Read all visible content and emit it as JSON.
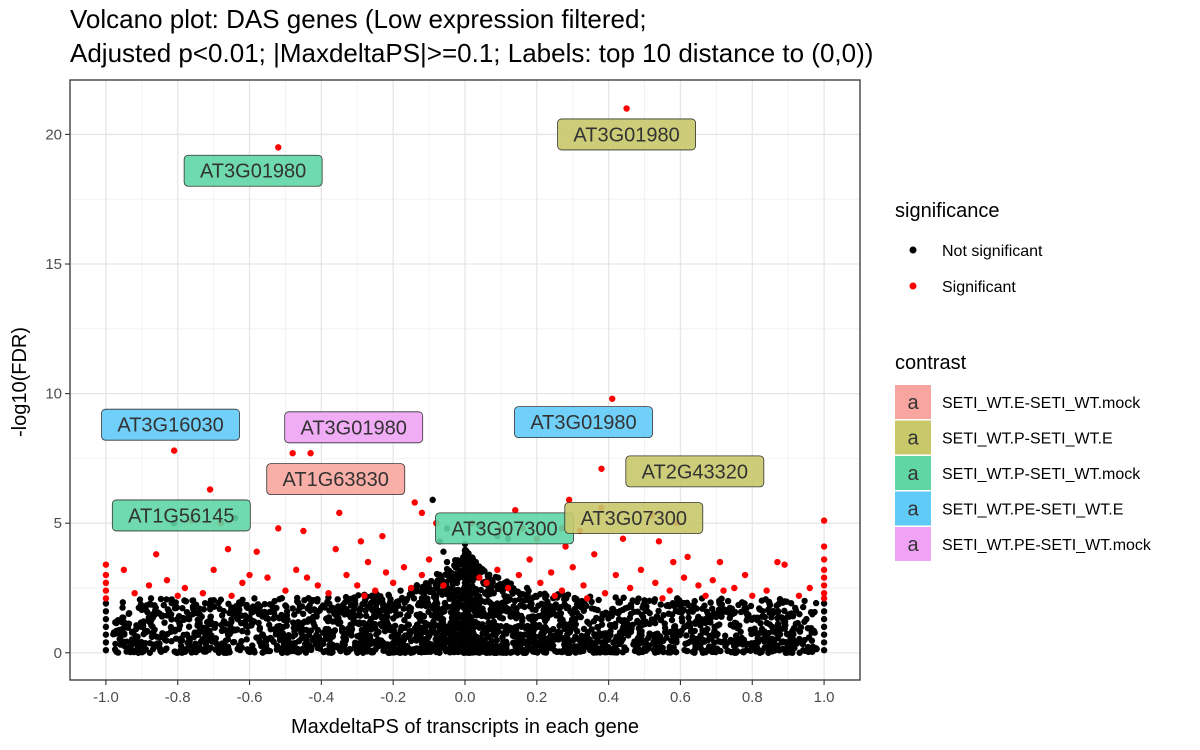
{
  "chart_data": {
    "type": "scatter",
    "title_lines": [
      "Volcano plot: DAS genes (Low expression filtered;",
      "Adjusted p<0.01; |MaxdeltaPS|>=0.1; Labels: top 10 distance to (0,0))"
    ],
    "xlabel": "MaxdeltaPS of transcripts in each gene",
    "ylabel": "-log10(FDR)",
    "xlim": [
      -1.1,
      1.1
    ],
    "ylim": [
      -1.05,
      22.1
    ],
    "xticks": [
      -1.0,
      -0.8,
      -0.6,
      -0.4,
      -0.2,
      0.0,
      0.2,
      0.4,
      0.6,
      0.8,
      1.0
    ],
    "xtick_labels": [
      "-1.0",
      "-0.8",
      "-0.6",
      "-0.4",
      "-0.2",
      "0.0",
      "0.2",
      "0.4",
      "0.6",
      "0.8",
      "1.0"
    ],
    "yticks": [
      0,
      5,
      10,
      15,
      20
    ],
    "ytick_labels": [
      "0",
      "5",
      "10",
      "15",
      "20"
    ],
    "grid": true,
    "legend_position": "right",
    "significance_legend": {
      "title": "significance",
      "entries": [
        {
          "label": "Not significant",
          "color": "#000000"
        },
        {
          "label": "Significant",
          "color": "#ff0000"
        }
      ]
    },
    "contrast_legend": {
      "title": "contrast",
      "key_glyph": "a",
      "entries": [
        {
          "label": "SETI_WT.E-SETI_WT.mock",
          "color": "#f8a59f"
        },
        {
          "label": "SETI_WT.P-SETI_WT.E",
          "color": "#c8c86a"
        },
        {
          "label": "SETI_WT.P-SETI_WT.mock",
          "color": "#5fd6a4"
        },
        {
          "label": "SETI_WT.PE-SETI_WT.E",
          "color": "#61cbf8"
        },
        {
          "label": "SETI_WT.PE-SETI_WT.mock",
          "color": "#f0a3f5"
        }
      ]
    },
    "significant_points": [
      [
        0.45,
        21.0
      ],
      [
        -0.52,
        19.5
      ],
      [
        0.41,
        9.8
      ],
      [
        -0.81,
        7.8
      ],
      [
        -0.43,
        7.7
      ],
      [
        -0.48,
        7.7
      ],
      [
        0.38,
        7.1
      ],
      [
        -0.71,
        6.3
      ],
      [
        -0.35,
        5.4
      ],
      [
        -0.14,
        5.8
      ],
      [
        -0.12,
        5.4
      ],
      [
        0.14,
        5.5
      ],
      [
        0.29,
        5.9
      ],
      [
        0.38,
        5.6
      ],
      [
        0.52,
        5.3
      ],
      [
        0.54,
        4.3
      ],
      [
        0.59,
        5.0
      ],
      [
        -0.76,
        5.1
      ],
      [
        -0.68,
        5.0
      ],
      [
        -0.52,
        4.8
      ],
      [
        -0.45,
        4.7
      ],
      [
        -0.08,
        5.0
      ],
      [
        0.02,
        5.0
      ],
      [
        0.1,
        4.8
      ],
      [
        0.16,
        4.8
      ],
      [
        0.27,
        4.8
      ],
      [
        0.32,
        4.7
      ],
      [
        -0.86,
        3.8
      ],
      [
        -0.66,
        4.0
      ],
      [
        -0.58,
        3.9
      ],
      [
        -0.36,
        4.0
      ],
      [
        -0.29,
        4.3
      ],
      [
        -0.23,
        4.5
      ],
      [
        0.2,
        4.4
      ],
      [
        0.28,
        4.1
      ],
      [
        0.44,
        4.4
      ],
      [
        0.62,
        3.7
      ],
      [
        0.71,
        3.5
      ],
      [
        -1.0,
        3.4
      ],
      [
        -1.0,
        3.0
      ],
      [
        -1.0,
        2.7
      ],
      [
        -1.0,
        2.4
      ],
      [
        -1.0,
        2.1
      ],
      [
        1.0,
        5.1
      ],
      [
        1.0,
        4.1
      ],
      [
        1.0,
        3.6
      ],
      [
        1.0,
        3.2
      ],
      [
        1.0,
        2.9
      ],
      [
        1.0,
        2.6
      ],
      [
        1.0,
        2.3
      ],
      [
        1.0,
        2.1
      ],
      [
        0.89,
        3.4
      ],
      [
        0.87,
        3.5
      ],
      [
        0.78,
        3.0
      ],
      [
        0.69,
        2.8
      ],
      [
        0.75,
        2.5
      ],
      [
        0.84,
        2.4
      ],
      [
        0.93,
        2.2
      ],
      [
        0.96,
        2.5
      ],
      [
        -0.95,
        3.2
      ],
      [
        -0.92,
        2.3
      ],
      [
        -0.88,
        2.6
      ],
      [
        -0.83,
        2.8
      ],
      [
        -0.78,
        2.5
      ],
      [
        -0.73,
        2.3
      ],
      [
        -0.62,
        2.7
      ],
      [
        -0.6,
        3.0
      ],
      [
        -0.55,
        2.9
      ],
      [
        -0.5,
        2.4
      ],
      [
        -0.47,
        3.2
      ],
      [
        -0.41,
        2.6
      ],
      [
        -0.38,
        2.3
      ],
      [
        -0.33,
        3.0
      ],
      [
        -0.3,
        2.6
      ],
      [
        -0.27,
        3.5
      ],
      [
        -0.25,
        2.4
      ],
      [
        -0.22,
        3.1
      ],
      [
        -0.2,
        2.7
      ],
      [
        -0.17,
        3.3
      ],
      [
        -0.15,
        2.5
      ],
      [
        -0.12,
        3.0
      ],
      [
        -0.1,
        3.6
      ],
      [
        -0.06,
        2.6
      ],
      [
        0.06,
        2.7
      ],
      [
        0.09,
        3.2
      ],
      [
        0.12,
        2.5
      ],
      [
        0.15,
        3.0
      ],
      [
        0.18,
        3.6
      ],
      [
        0.21,
        2.7
      ],
      [
        0.24,
        3.1
      ],
      [
        0.27,
        2.4
      ],
      [
        0.3,
        3.3
      ],
      [
        0.33,
        2.6
      ],
      [
        0.36,
        3.8
      ],
      [
        0.39,
        2.3
      ],
      [
        0.42,
        3.0
      ],
      [
        0.46,
        2.5
      ],
      [
        0.49,
        3.2
      ],
      [
        0.53,
        2.7
      ],
      [
        0.57,
        2.4
      ],
      [
        0.61,
        2.9
      ],
      [
        0.65,
        2.6
      ],
      [
        0.67,
        2.2
      ],
      [
        0.72,
        2.4
      ],
      [
        0.8,
        2.2
      ],
      [
        -0.7,
        3.2
      ],
      [
        -0.44,
        2.9
      ],
      [
        -0.28,
        2.2
      ],
      [
        0.04,
        2.9
      ],
      [
        0.25,
        2.2
      ],
      [
        0.55,
        2.1
      ],
      [
        0.58,
        3.5
      ],
      [
        -0.8,
        2.2
      ],
      [
        -0.65,
        2.2
      ],
      [
        0.34,
        2.1
      ]
    ],
    "nonsignificant_points": [
      [
        -0.09,
        5.9
      ],
      [
        -0.07,
        4.3
      ],
      [
        -0.06,
        3.9
      ],
      [
        -0.05,
        3.5
      ],
      [
        0.03,
        3.5
      ],
      [
        0.05,
        3.2
      ],
      [
        -0.04,
        3.0
      ],
      [
        0.02,
        2.9
      ],
      [
        -0.08,
        2.7
      ],
      [
        0.07,
        2.6
      ],
      [
        -0.05,
        4.8
      ],
      [
        0.0,
        4.2
      ],
      [
        0.04,
        4.9
      ],
      [
        -0.1,
        2.5
      ],
      [
        0.08,
        2.3
      ],
      [
        -0.03,
        2.2
      ],
      [
        0.11,
        2.2
      ],
      [
        -0.12,
        2.1
      ],
      [
        0.13,
        2.4
      ],
      [
        -0.15,
        2.3
      ],
      [
        -0.81,
        5.0
      ],
      [
        -0.64,
        5.2
      ],
      [
        0.09,
        4.5
      ],
      [
        0.12,
        4.4
      ],
      [
        -0.06,
        2.4
      ],
      [
        -1.0,
        1.9
      ],
      [
        -1.0,
        1.6
      ],
      [
        -1.0,
        1.3
      ],
      [
        -1.0,
        1.0
      ],
      [
        -1.0,
        0.7
      ],
      [
        -1.0,
        0.4
      ],
      [
        -1.0,
        0.1
      ],
      [
        1.0,
        1.9
      ],
      [
        1.0,
        1.6
      ],
      [
        1.0,
        1.3
      ],
      [
        1.0,
        1.0
      ],
      [
        1.0,
        0.7
      ],
      [
        1.0,
        0.4
      ],
      [
        1.0,
        0.1
      ]
    ],
    "labels": [
      {
        "text": "AT3G01980",
        "x": 0.45,
        "y": 20.0,
        "contrast": "SETI_WT.P-SETI_WT.E"
      },
      {
        "text": "AT3G01980",
        "x": -0.59,
        "y": 18.6,
        "contrast": "SETI_WT.P-SETI_WT.mock"
      },
      {
        "text": "AT3G16030",
        "x": -0.82,
        "y": 8.8,
        "contrast": "SETI_WT.PE-SETI_WT.E"
      },
      {
        "text": "AT3G01980",
        "x": -0.31,
        "y": 8.7,
        "contrast": "SETI_WT.PE-SETI_WT.mock"
      },
      {
        "text": "AT3G01980",
        "x": 0.33,
        "y": 8.9,
        "contrast": "SETI_WT.PE-SETI_WT.E"
      },
      {
        "text": "AT1G63830",
        "x": -0.36,
        "y": 6.7,
        "contrast": "SETI_WT.E-SETI_WT.mock"
      },
      {
        "text": "AT2G43320",
        "x": 0.64,
        "y": 7.0,
        "contrast": "SETI_WT.P-SETI_WT.E"
      },
      {
        "text": "AT1G56145",
        "x": -0.79,
        "y": 5.3,
        "contrast": "SETI_WT.P-SETI_WT.mock"
      },
      {
        "text": "AT3G07300",
        "x": 0.11,
        "y": 4.8,
        "contrast": "SETI_WT.P-SETI_WT.mock"
      },
      {
        "text": "AT3G07300",
        "x": 0.47,
        "y": 5.2,
        "contrast": "SETI_WT.P-SETI_WT.E"
      }
    ]
  }
}
